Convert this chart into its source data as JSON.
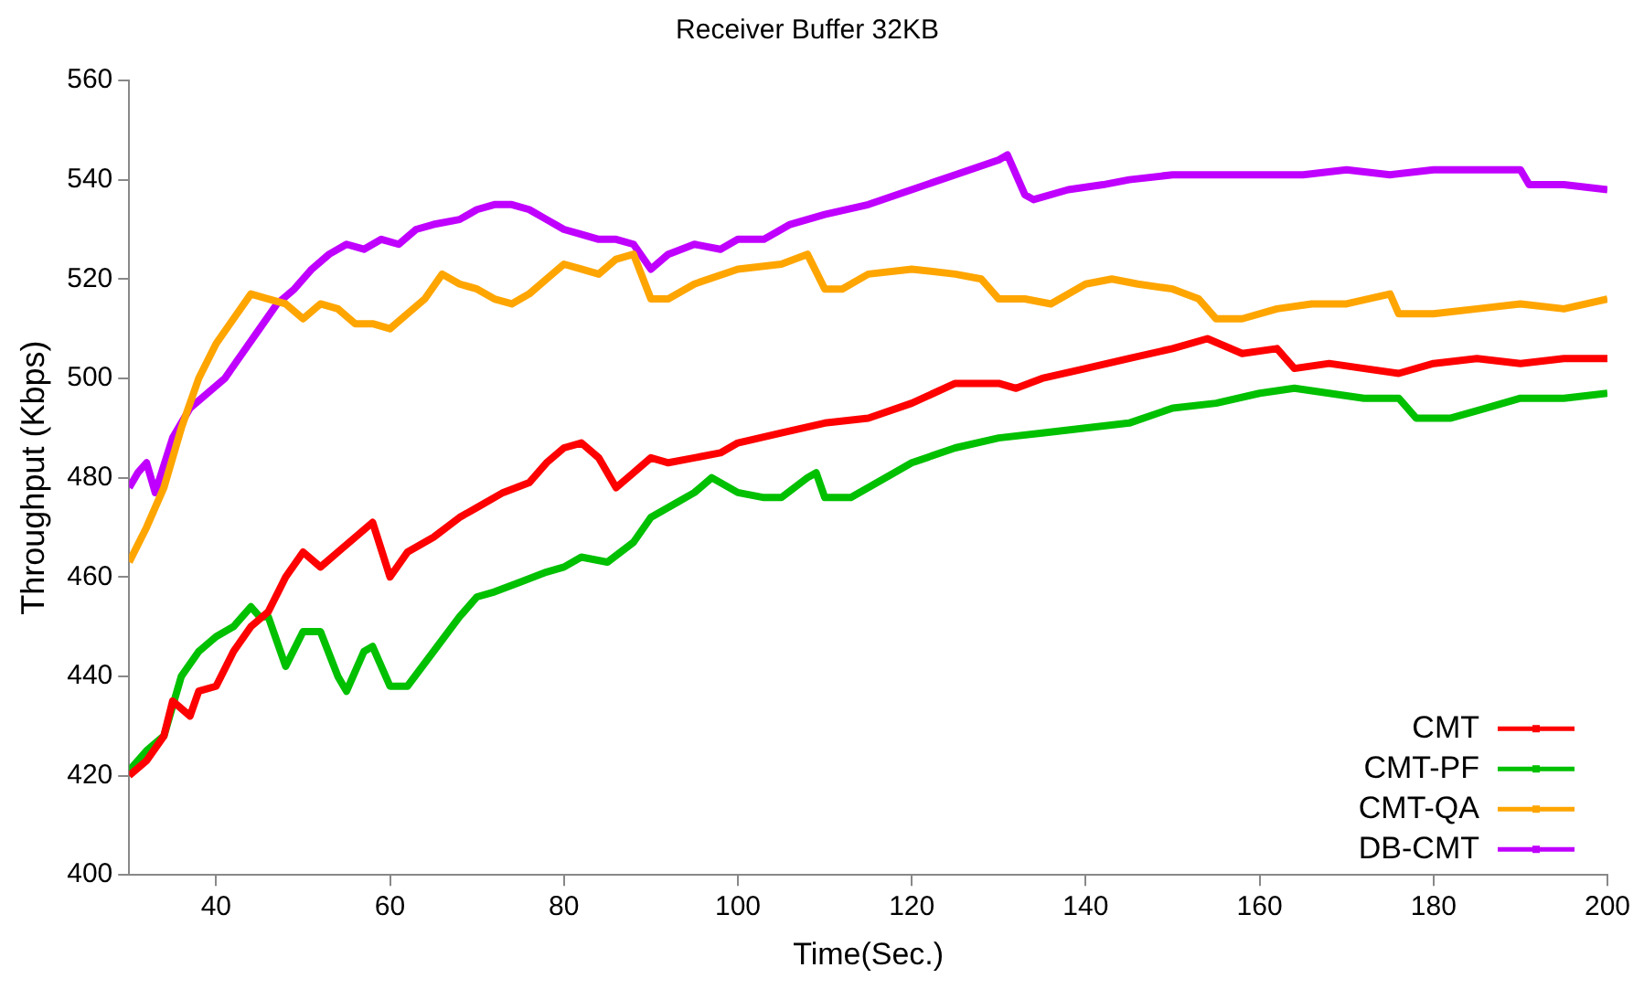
{
  "chart_data": {
    "type": "line",
    "title": "Receiver Buffer 32KB",
    "xlabel": "Time(Sec.)",
    "ylabel": "Throughput (Kbps)",
    "xlim": [
      30,
      200
    ],
    "xticks": [
      40,
      60,
      80,
      100,
      120,
      140,
      160,
      180,
      200
    ],
    "ylim": [
      400,
      560
    ],
    "yticks": [
      400,
      420,
      440,
      460,
      480,
      500,
      520,
      540,
      560
    ],
    "grid": false,
    "legend": "bottom right",
    "line_style": "solid",
    "series": [
      {
        "name": "CMT",
        "color": "#ff0000",
        "x": [
          30,
          32,
          34,
          35,
          37,
          38,
          40,
          42,
          44,
          46,
          48,
          50,
          52,
          54,
          56,
          58,
          60,
          62,
          65,
          68,
          70,
          73,
          76,
          78,
          80,
          82,
          84,
          86,
          88,
          90,
          92,
          95,
          98,
          100,
          105,
          110,
          115,
          120,
          125,
          130,
          132,
          135,
          140,
          145,
          150,
          154,
          158,
          162,
          164,
          168,
          172,
          176,
          180,
          185,
          190,
          195,
          200
        ],
        "values": [
          420,
          423,
          428,
          435,
          432,
          437,
          438,
          445,
          450,
          453,
          460,
          465,
          462,
          465,
          468,
          471,
          460,
          465,
          468,
          472,
          474,
          477,
          479,
          483,
          486,
          487,
          484,
          478,
          481,
          484,
          483,
          484,
          485,
          487,
          489,
          491,
          492,
          495,
          499,
          499,
          498,
          500,
          502,
          504,
          506,
          508,
          505,
          506,
          502,
          503,
          502,
          501,
          503,
          504,
          503,
          504,
          504
        ]
      },
      {
        "name": "CMT-PF",
        "color": "#00c000",
        "x": [
          30,
          32,
          34,
          36,
          38,
          40,
          42,
          44,
          45,
          46,
          48,
          50,
          52,
          54,
          55,
          57,
          58,
          60,
          62,
          65,
          68,
          70,
          72,
          75,
          78,
          80,
          82,
          85,
          88,
          90,
          93,
          95,
          97,
          100,
          103,
          105,
          108,
          109,
          110,
          113,
          116,
          120,
          125,
          130,
          135,
          140,
          145,
          150,
          155,
          160,
          164,
          168,
          172,
          176,
          178,
          182,
          186,
          190,
          195,
          200
        ],
        "values": [
          421,
          425,
          428,
          440,
          445,
          448,
          450,
          454,
          452,
          452,
          442,
          449,
          449,
          440,
          437,
          445,
          446,
          438,
          438,
          445,
          452,
          456,
          457,
          459,
          461,
          462,
          464,
          463,
          467,
          472,
          475,
          477,
          480,
          477,
          476,
          476,
          480,
          481,
          476,
          476,
          479,
          483,
          486,
          488,
          489,
          490,
          491,
          494,
          495,
          497,
          498,
          497,
          496,
          496,
          492,
          492,
          494,
          496,
          496,
          497
        ]
      },
      {
        "name": "CMT-QA",
        "color": "#ffa500",
        "x": [
          30,
          32,
          34,
          36,
          38,
          40,
          42,
          44,
          46,
          48,
          50,
          52,
          54,
          56,
          58,
          60,
          62,
          64,
          66,
          68,
          70,
          72,
          74,
          76,
          78,
          80,
          82,
          84,
          86,
          88,
          90,
          92,
          95,
          100,
          105,
          108,
          110,
          112,
          115,
          120,
          125,
          128,
          130,
          133,
          136,
          140,
          143,
          146,
          150,
          153,
          155,
          158,
          162,
          166,
          170,
          175,
          176,
          180,
          185,
          190,
          195,
          200
        ],
        "values": [
          463,
          470,
          478,
          490,
          500,
          507,
          512,
          517,
          516,
          515,
          512,
          515,
          514,
          511,
          511,
          510,
          513,
          516,
          521,
          519,
          518,
          516,
          515,
          517,
          520,
          523,
          522,
          521,
          524,
          525,
          516,
          516,
          519,
          522,
          523,
          525,
          518,
          518,
          521,
          522,
          521,
          520,
          516,
          516,
          515,
          519,
          520,
          519,
          518,
          516,
          512,
          512,
          514,
          515,
          515,
          517,
          513,
          513,
          514,
          515,
          514,
          516
        ]
      },
      {
        "name": "DB-CMT",
        "color": "#c000ff",
        "x": [
          30,
          31,
          32,
          33,
          35,
          37,
          39,
          41,
          43,
          45,
          47,
          49,
          51,
          53,
          55,
          57,
          59,
          61,
          63,
          65,
          68,
          70,
          72,
          74,
          76,
          78,
          80,
          82,
          84,
          86,
          88,
          90,
          92,
          95,
          98,
          100,
          103,
          106,
          110,
          115,
          120,
          125,
          130,
          131,
          133,
          134,
          138,
          142,
          145,
          150,
          155,
          160,
          165,
          170,
          175,
          180,
          185,
          190,
          191,
          195,
          200
        ],
        "values": [
          478,
          481,
          483,
          477,
          488,
          494,
          497,
          500,
          505,
          510,
          515,
          518,
          522,
          525,
          527,
          526,
          528,
          527,
          530,
          531,
          532,
          534,
          535,
          535,
          534,
          532,
          530,
          529,
          528,
          528,
          527,
          522,
          525,
          527,
          526,
          528,
          528,
          531,
          533,
          535,
          538,
          541,
          544,
          545,
          537,
          536,
          538,
          539,
          540,
          541,
          541,
          541,
          541,
          542,
          541,
          542,
          542,
          542,
          539,
          539,
          538
        ]
      }
    ]
  }
}
